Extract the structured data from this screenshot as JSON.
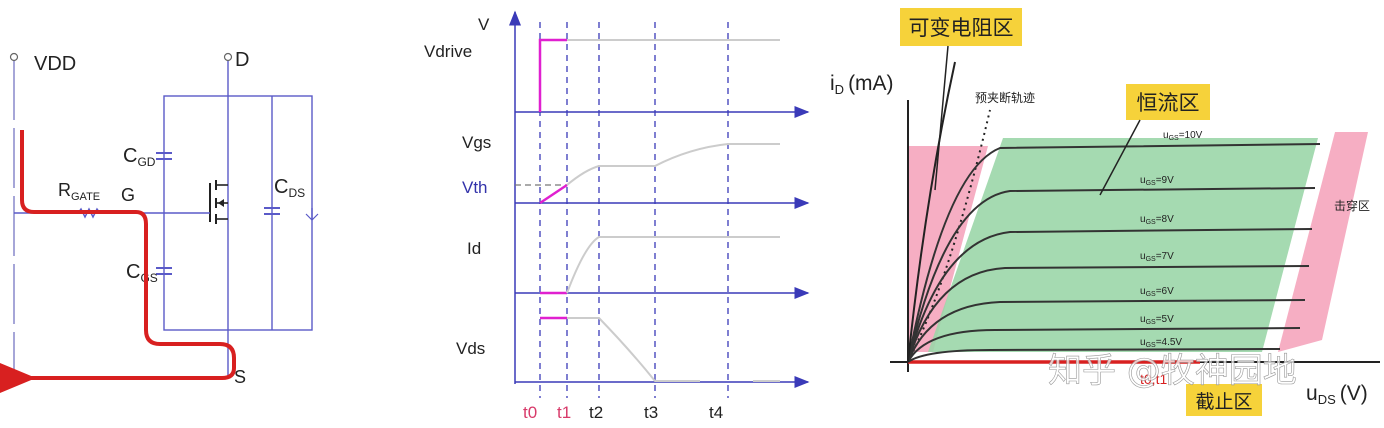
{
  "circuit": {
    "vdd": "VDD",
    "d": "D",
    "s": "S",
    "g": "G",
    "rgate_main": "R",
    "rgate_sub": "GATE",
    "cgd_main": "C",
    "cgd_sub": "GD",
    "cgs_main": "C",
    "cgs_sub": "GS",
    "cds_main": "C",
    "cds_sub": "DS"
  },
  "timing": {
    "v": "V",
    "vdrive": "Vdrive",
    "vgs": "Vgs",
    "vth": "Vth",
    "id": "Id",
    "vds": "Vds",
    "t0": "t0",
    "t1": "t1",
    "t2": "t2",
    "t3": "t3",
    "t4": "t4"
  },
  "curves": {
    "ylabel_main": "i",
    "ylabel_sub": "D",
    "ylabel_unit": "(mA)",
    "xlabel_main": "u",
    "xlabel_sub": "DS",
    "xlabel_unit": "(V)",
    "region_variable": "可变电阻区",
    "region_constant": "恒流区",
    "region_cutoff": "截止区",
    "region_breakdown": "击穿区",
    "pinchoff_label": "预夹断轨迹",
    "t0t1": "t0,t1",
    "watermark": "知乎 @牧神园地",
    "ugs": [
      "10V",
      "9V",
      "8V",
      "7V",
      "6V",
      "5V",
      "4.5V"
    ],
    "ugs_prefix_main": "u",
    "ugs_prefix_sub": "GS",
    "ugs_eq": "="
  }
}
